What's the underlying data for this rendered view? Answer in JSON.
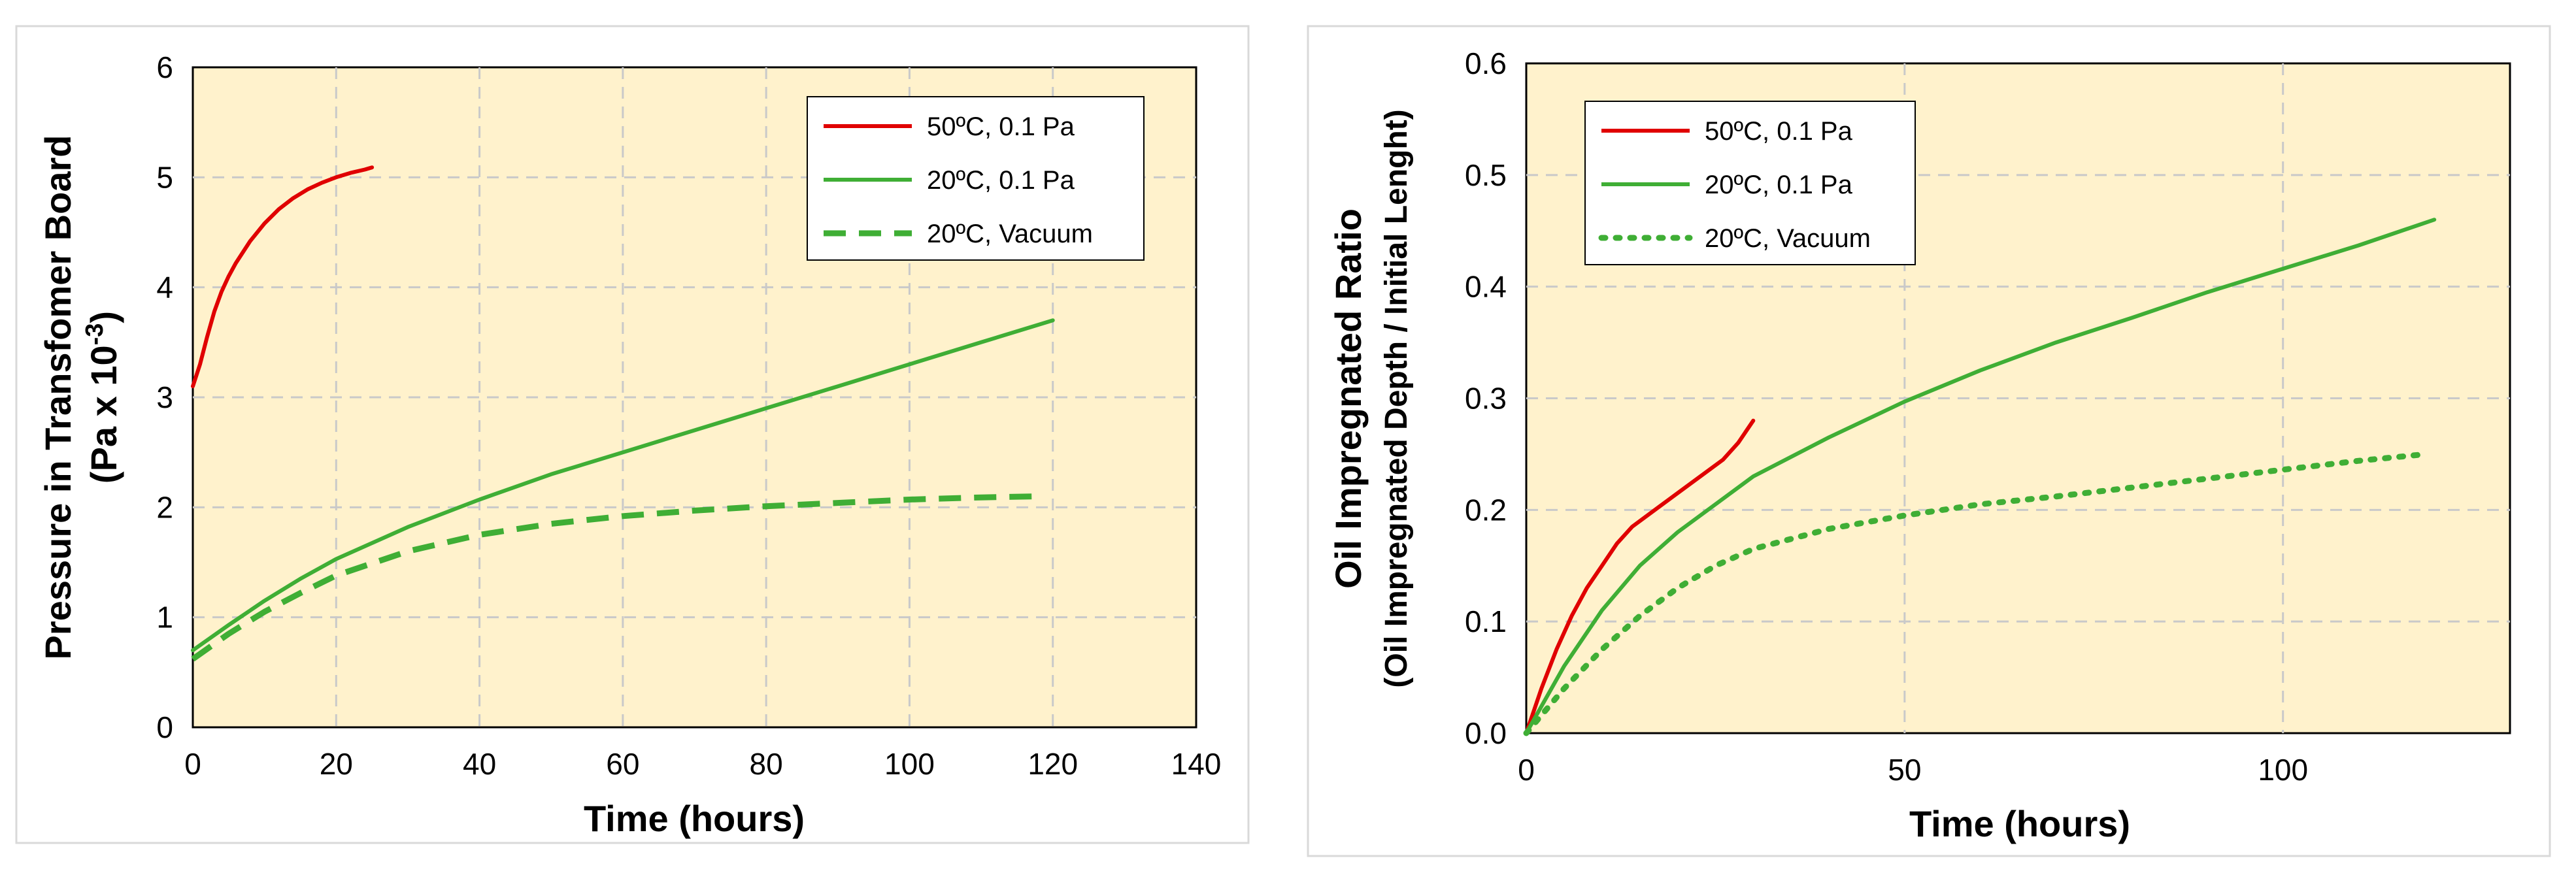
{
  "chart_data": [
    {
      "type": "line",
      "title": "",
      "xlabel": "Time (hours)",
      "ylabel_line1": "Pressure in Transfomer Board",
      "ylabel_line2_prefix": "(Pa x 10",
      "ylabel_line2_sup": "-3",
      "ylabel_line2_suffix": ")",
      "xlim": [
        0,
        140
      ],
      "ylim": [
        0,
        6
      ],
      "xticks": [
        0,
        20,
        40,
        60,
        80,
        100,
        120,
        140
      ],
      "yticks": [
        0,
        1,
        2,
        3,
        4,
        5,
        6
      ],
      "grid": true,
      "legend_position": "top-right",
      "plot_bg": "#FFF2CC",
      "series": [
        {
          "name": "50ºC, 0.1 Pa",
          "color": "#E00000",
          "style": "solid",
          "x": [
            0,
            1,
            2,
            3,
            4,
            5,
            6,
            8,
            10,
            12,
            14,
            16,
            18,
            20,
            22,
            24,
            25
          ],
          "y": [
            3.1,
            3.3,
            3.55,
            3.78,
            3.96,
            4.1,
            4.22,
            4.42,
            4.58,
            4.71,
            4.81,
            4.89,
            4.95,
            5.0,
            5.04,
            5.07,
            5.09
          ]
        },
        {
          "name": "20ºC, 0.1 Pa",
          "color": "#3FAE35",
          "style": "solid",
          "x": [
            0,
            5,
            10,
            15,
            20,
            30,
            40,
            50,
            60,
            70,
            80,
            90,
            100,
            110,
            120
          ],
          "y": [
            0.7,
            0.93,
            1.15,
            1.35,
            1.53,
            1.82,
            2.07,
            2.3,
            2.5,
            2.7,
            2.9,
            3.1,
            3.3,
            3.5,
            3.7
          ]
        },
        {
          "name": "20ºC, Vacuum",
          "color": "#3FAE35",
          "style": "dashed",
          "x": [
            0,
            5,
            10,
            15,
            20,
            30,
            40,
            50,
            60,
            70,
            80,
            90,
            100,
            110,
            118
          ],
          "y": [
            0.62,
            0.85,
            1.05,
            1.22,
            1.38,
            1.6,
            1.75,
            1.85,
            1.92,
            1.97,
            2.01,
            2.04,
            2.07,
            2.09,
            2.1
          ]
        }
      ]
    },
    {
      "type": "line",
      "title": "",
      "xlabel": "Time (hours)",
      "ylabel_line1": "Oil Impregnated Ratio",
      "ylabel_line2": "(Oil Impregnated Depth / Initial Lenght)",
      "xlim": [
        0,
        130
      ],
      "ylim": [
        0,
        0.6
      ],
      "xticks": [
        0,
        50,
        100
      ],
      "yticks": [
        0.0,
        0.1,
        0.2,
        0.3,
        0.4,
        0.5,
        0.6
      ],
      "ytick_labels": [
        "0.0",
        "0.1",
        "0.2",
        "0.3",
        "0.4",
        "0.5",
        "0.6"
      ],
      "grid": true,
      "legend_position": "top-left",
      "plot_bg": "#FFF2CC",
      "series": [
        {
          "name": "50ºC, 0.1 Pa",
          "color": "#E00000",
          "style": "solid",
          "x": [
            0,
            2,
            4,
            6,
            8,
            10,
            12,
            14,
            17,
            20,
            23,
            26,
            28,
            30
          ],
          "y": [
            0.0,
            0.04,
            0.075,
            0.105,
            0.13,
            0.15,
            0.17,
            0.185,
            0.2,
            0.215,
            0.23,
            0.245,
            0.26,
            0.28
          ]
        },
        {
          "name": "20ºC, 0.1 Pa",
          "color": "#3FAE35",
          "style": "solid",
          "x": [
            0,
            5,
            10,
            15,
            20,
            30,
            40,
            50,
            60,
            70,
            80,
            90,
            100,
            110,
            120
          ],
          "y": [
            0.0,
            0.06,
            0.11,
            0.15,
            0.18,
            0.23,
            0.265,
            0.297,
            0.325,
            0.35,
            0.372,
            0.395,
            0.416,
            0.437,
            0.46
          ]
        },
        {
          "name": "20ºC, Vacuum",
          "color": "#3FAE35",
          "style": "dotted",
          "x": [
            0,
            5,
            10,
            15,
            20,
            25,
            30,
            40,
            50,
            60,
            70,
            80,
            90,
            100,
            110,
            119
          ],
          "y": [
            0.0,
            0.04,
            0.075,
            0.105,
            0.13,
            0.15,
            0.165,
            0.183,
            0.195,
            0.205,
            0.212,
            0.22,
            0.228,
            0.236,
            0.244,
            0.25
          ]
        }
      ]
    }
  ]
}
